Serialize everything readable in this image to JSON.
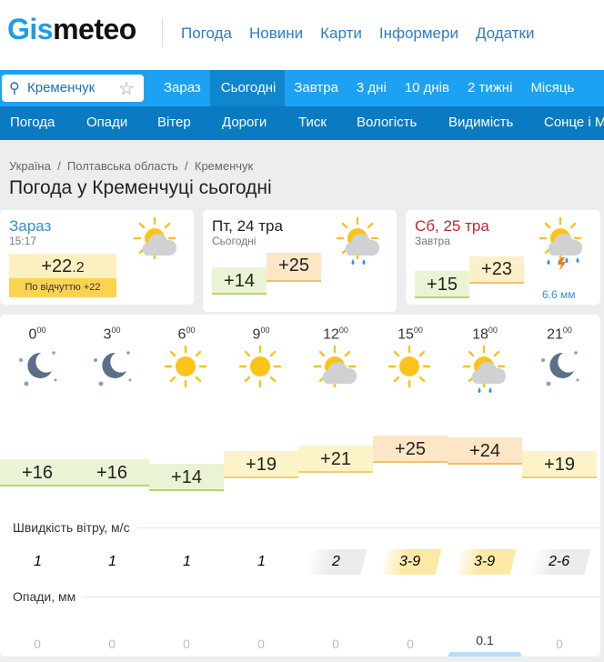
{
  "header": {
    "logo_a": "Gis",
    "logo_b": "meteo",
    "nav": [
      "Погода",
      "Новини",
      "Карти",
      "Інформери",
      "Додатки"
    ]
  },
  "search": {
    "value": "Кременчук"
  },
  "period_tabs": [
    "Зараз",
    "Сьогодні",
    "Завтра",
    "3 дні",
    "10 днів",
    "2 тижні",
    "Місяць"
  ],
  "active_tab": "Сьогодні",
  "sub_tabs": [
    "Погода",
    "Опади",
    "Вітер",
    "Дороги",
    "Тиск",
    "Вологість",
    "Видимість",
    "Сонце і М"
  ],
  "breadcrumb": [
    "Україна",
    "Полтавська область",
    "Кременчук"
  ],
  "page_title": "Погода у Кременчуці сьогодні",
  "now": {
    "title": "Зараз",
    "time": "15:17",
    "temp": "+22",
    "temp_dec": ".2",
    "feels": "По відчуттю +22",
    "icon": "partly-cloudy-icon"
  },
  "today": {
    "title": "Пт, 24 тра",
    "sub": "Сьогодні",
    "min": "+14",
    "max": "+25",
    "icon": "cloud-sun-rain-icon"
  },
  "tomorrow": {
    "title": "Сб, 25 тра",
    "sub": "Завтра",
    "min": "+15",
    "max": "+23",
    "precip": "6.6 мм",
    "icon": "cloud-sun-thunderstorm-icon"
  },
  "hourly": {
    "hours": [
      "0",
      "3",
      "6",
      "9",
      "12",
      "15",
      "18",
      "21"
    ],
    "icons": [
      "moon-stars-icon",
      "moon-stars-icon",
      "sun-icon",
      "sun-icon",
      "partly-cloudy-icon",
      "sun-icon",
      "cloud-sun-rain-icon",
      "moon-stars-icon"
    ],
    "temps": [
      "+16",
      "+16",
      "+14",
      "+19",
      "+21",
      "+25",
      "+24",
      "+19"
    ],
    "temp_values": [
      16,
      16,
      14,
      19,
      21,
      25,
      24,
      19
    ],
    "wind_label": "Швидкість вітру, м/с",
    "wind": [
      "1",
      "1",
      "1",
      "1",
      "2",
      "3-9",
      "3-9",
      "2-6"
    ],
    "precip_label": "Опади, мм",
    "precip": [
      "0",
      "0",
      "0",
      "0",
      "0",
      "0",
      "0.1",
      "0"
    ]
  },
  "colors": {
    "brand": "#1da1f2",
    "nav_dark": "#0a7bc3",
    "link": "#2f7dc0",
    "weekend": "#c0272d"
  }
}
